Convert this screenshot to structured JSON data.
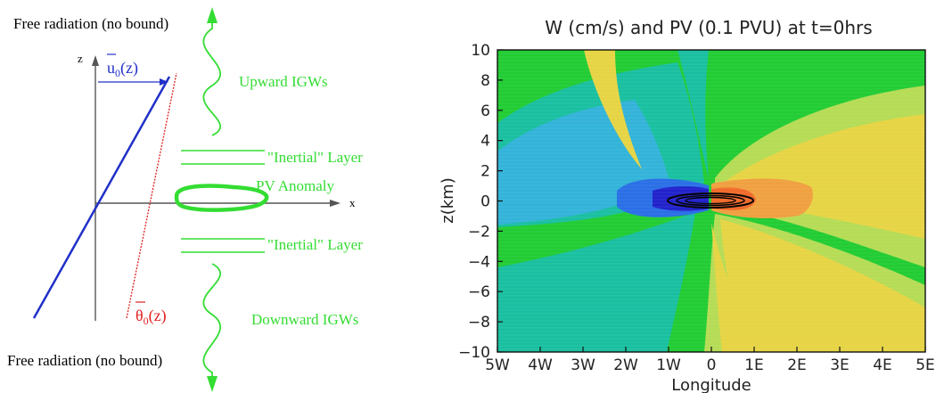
{
  "schematic": {
    "top_caption": "Free radiation (no bound)",
    "bottom_caption": "Free radiation (no bound)",
    "axis_z": "z",
    "axis_x": "x",
    "wind_profile": "u",
    "wind_sub": "0",
    "wind_arg": "(z)",
    "theta_profile": "θ",
    "theta_sub": "0",
    "theta_arg": "(z)",
    "upward": "Upward IGWs",
    "downward": "Downward IGWs",
    "inertial_upper": "\"Inertial\" Layer",
    "inertial_lower": "\"Inertial\" Layer",
    "anomaly": "PV Anomaly",
    "colors": {
      "wind": "#2030c8",
      "theta": "#e02020",
      "wave": "#33dd33",
      "axes": "#555555"
    }
  },
  "panel": {
    "title": "W (cm/s) and PV (0.1 PVU) at t=0hrs",
    "ylabel": "z(km)",
    "xlabel": "Longitude",
    "xticks": [
      "5W",
      "4W",
      "3W",
      "2W",
      "1W",
      "0",
      "1E",
      "2E",
      "3E",
      "4E",
      "5E"
    ],
    "yticks": [
      "10",
      "8",
      "6",
      "4",
      "2",
      "0",
      "−2",
      "−4",
      "−6",
      "−8",
      "−10"
    ]
  },
  "chart_data": {
    "type": "heatmap",
    "title": "W (cm/s) and PV (0.1 PVU) at t=0hrs",
    "xlabel": "Longitude",
    "ylabel": "z(km)",
    "xlim": [
      -5,
      5
    ],
    "ylim": [
      -10,
      10
    ],
    "x": [
      -5,
      -4,
      -3,
      -2,
      -1,
      0,
      1,
      2,
      3,
      4,
      5
    ],
    "y": [
      10,
      8,
      6,
      4,
      2,
      0,
      -2,
      -4,
      -6,
      -8,
      -10
    ],
    "colors": {
      "background": "#22cc33",
      "weak_negative": "#19bfa0",
      "moderate_negative": "#33b3d9",
      "strong_negative": "#2a6fe6",
      "strongest_negative": "#2222cc",
      "weak_positive": "#b5dc55",
      "moderate_positive": "#e6d444",
      "strong_positive": "#f0a040",
      "strongest_positive": "#f06a2a",
      "pv_contour": "#000000"
    }
  }
}
